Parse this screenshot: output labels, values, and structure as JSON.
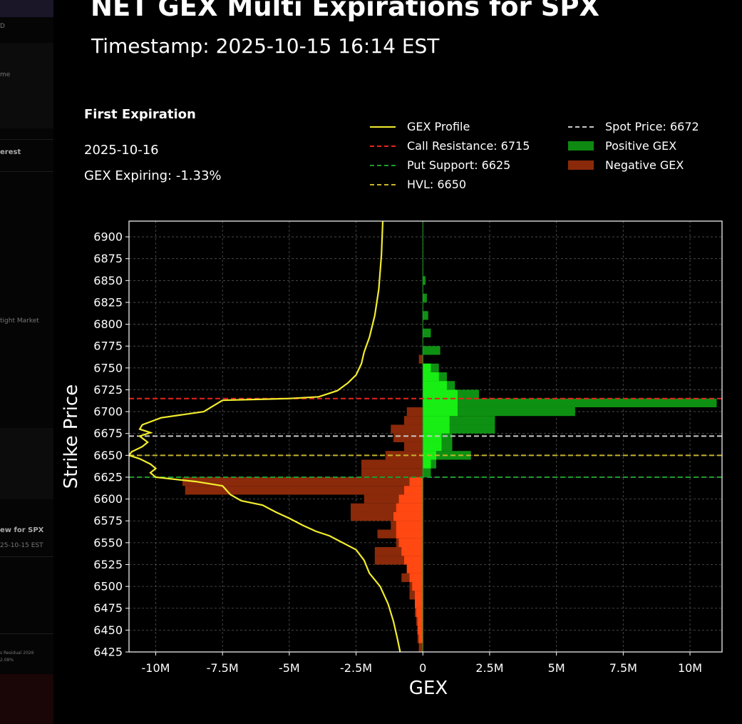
{
  "title": "NET GEX Multi Expirations for SPX",
  "subtitle": "Timestamp: 2025-10-15 16:14 EST",
  "info": {
    "heading": "First Expiration",
    "date": "2025-10-16",
    "expiring": "GEX Expiring: -1.33%"
  },
  "legend": [
    {
      "label": "GEX Profile",
      "color": "#f2ec2e",
      "style": "line"
    },
    {
      "label": "Call Resistance: 6715",
      "color": "#e8241e",
      "style": "dash"
    },
    {
      "label": "Put Support: 6625",
      "color": "#1f9a2c",
      "style": "dash"
    },
    {
      "label": "HVL: 6650",
      "color": "#c7b42c",
      "style": "dash"
    },
    {
      "label": "Spot Price: 6672",
      "color": "#c8c8c8",
      "style": "dash"
    },
    {
      "label": "Positive GEX",
      "color": "#0e8a12",
      "style": "patch"
    },
    {
      "label": "Negative GEX",
      "color": "#8a2a0a",
      "style": "patch"
    }
  ],
  "sidebar": {
    "frags": [
      "D",
      "me",
      "erest",
      "tight Market",
      "ew for SPX",
      "25-10-15 EST",
      "s Residual 2026",
      "2.08%"
    ]
  },
  "colors": {
    "pos_outer": "#0e9112",
    "pos_inner": "#18ee14",
    "neg_outer": "#8a2a0a",
    "neg_inner": "#ff4812",
    "profile": "#f2ec2e",
    "call": "#e8241e",
    "put": "#1f9a2c",
    "hvl": "#c7b42c",
    "spot": "#c8c8c8",
    "grid": "#555555"
  },
  "chart_data": {
    "type": "bar",
    "orientation": "horizontal",
    "xlabel": "GEX",
    "ylabel": "Strike Price",
    "xlim": [
      -11.0,
      11.2
    ],
    "ylim": [
      6425,
      6918
    ],
    "xticks": [
      -10,
      -7.5,
      -5,
      -2.5,
      0,
      2.5,
      5,
      7.5,
      10
    ],
    "xtick_labels": [
      "-10M",
      "-7.5M",
      "-5M",
      "-2.5M",
      "0",
      "2.5M",
      "5M",
      "7.5M",
      "10M"
    ],
    "yticks": [
      6425,
      6450,
      6475,
      6500,
      6525,
      6550,
      6575,
      6600,
      6625,
      6650,
      6675,
      6700,
      6725,
      6750,
      6775,
      6800,
      6825,
      6850,
      6875,
      6900
    ],
    "bar_height": 10,
    "units": "M",
    "levels": {
      "call_resistance": 6715,
      "put_support": 6625,
      "hvl": 6650,
      "spot": 6672
    },
    "aggregate_bars": [
      {
        "strike": 6850,
        "value": 0.1
      },
      {
        "strike": 6830,
        "value": 0.15
      },
      {
        "strike": 6810,
        "value": 0.2
      },
      {
        "strike": 6790,
        "value": 0.3
      },
      {
        "strike": 6770,
        "value": 0.65
      },
      {
        "strike": 6760,
        "value": -0.15
      },
      {
        "strike": 6750,
        "value": 0.6
      },
      {
        "strike": 6740,
        "value": 0.9
      },
      {
        "strike": 6730,
        "value": 1.2
      },
      {
        "strike": 6720,
        "value": 2.1
      },
      {
        "strike": 6710,
        "value": 11.0
      },
      {
        "strike": 6700,
        "value": 5.7
      },
      {
        "strike": 6690,
        "value": 2.7
      },
      {
        "strike": 6680,
        "value": 2.7
      },
      {
        "strike": 6670,
        "value": 1.1
      },
      {
        "strike": 6660,
        "value": 1.1
      },
      {
        "strike": 6650,
        "value": 1.8
      },
      {
        "strike": 6640,
        "value": 0.5
      },
      {
        "strike": 6630,
        "value": 0.3
      },
      {
        "strike": 6700,
        "value": -0.6
      },
      {
        "strike": 6690,
        "value": -0.7
      },
      {
        "strike": 6680,
        "value": -1.2
      },
      {
        "strike": 6670,
        "value": -1.1
      },
      {
        "strike": 6660,
        "value": -0.7
      },
      {
        "strike": 6650,
        "value": -1.4
      },
      {
        "strike": 6640,
        "value": -2.3
      },
      {
        "strike": 6630,
        "value": -2.3
      },
      {
        "strike": 6620,
        "value": -9.0
      },
      {
        "strike": 6610,
        "value": -8.9
      },
      {
        "strike": 6600,
        "value": -2.2
      },
      {
        "strike": 6590,
        "value": -2.7
      },
      {
        "strike": 6580,
        "value": -2.7
      },
      {
        "strike": 6570,
        "value": -1.2
      },
      {
        "strike": 6560,
        "value": -1.7
      },
      {
        "strike": 6550,
        "value": -1.0
      },
      {
        "strike": 6540,
        "value": -1.8
      },
      {
        "strike": 6530,
        "value": -1.8
      },
      {
        "strike": 6520,
        "value": -0.6
      },
      {
        "strike": 6510,
        "value": -0.8
      },
      {
        "strike": 6500,
        "value": -0.5
      },
      {
        "strike": 6490,
        "value": -0.5
      },
      {
        "strike": 6480,
        "value": -0.3
      },
      {
        "strike": 6470,
        "value": -0.3
      },
      {
        "strike": 6460,
        "value": -0.25
      },
      {
        "strike": 6450,
        "value": -0.2
      },
      {
        "strike": 6440,
        "value": -0.2
      },
      {
        "strike": 6430,
        "value": -0.15
      }
    ],
    "first_expiration_bars": [
      {
        "strike": 6750,
        "value": 0.3
      },
      {
        "strike": 6740,
        "value": 0.6
      },
      {
        "strike": 6730,
        "value": 0.9
      },
      {
        "strike": 6720,
        "value": 1.3
      },
      {
        "strike": 6710,
        "value": 1.3
      },
      {
        "strike": 6700,
        "value": 1.3
      },
      {
        "strike": 6690,
        "value": 1.0
      },
      {
        "strike": 6680,
        "value": 1.0
      },
      {
        "strike": 6670,
        "value": 0.7
      },
      {
        "strike": 6660,
        "value": 0.7
      },
      {
        "strike": 6650,
        "value": 0.5
      },
      {
        "strike": 6640,
        "value": 0.3
      },
      {
        "strike": 6620,
        "value": -0.5
      },
      {
        "strike": 6610,
        "value": -0.7
      },
      {
        "strike": 6600,
        "value": -0.9
      },
      {
        "strike": 6590,
        "value": -1.0
      },
      {
        "strike": 6580,
        "value": -1.1
      },
      {
        "strike": 6570,
        "value": -1.0
      },
      {
        "strike": 6560,
        "value": -1.0
      },
      {
        "strike": 6550,
        "value": -0.9
      },
      {
        "strike": 6540,
        "value": -0.8
      },
      {
        "strike": 6530,
        "value": -0.7
      },
      {
        "strike": 6520,
        "value": -0.6
      },
      {
        "strike": 6510,
        "value": -0.5
      },
      {
        "strike": 6500,
        "value": -0.4
      },
      {
        "strike": 6490,
        "value": -0.3
      },
      {
        "strike": 6480,
        "value": -0.3
      },
      {
        "strike": 6470,
        "value": -0.25
      },
      {
        "strike": 6460,
        "value": -0.2
      },
      {
        "strike": 6450,
        "value": -0.2
      },
      {
        "strike": 6440,
        "value": -0.15
      }
    ],
    "gex_profile": [
      [
        -1.5,
        6918
      ],
      [
        -1.55,
        6880
      ],
      [
        -1.65,
        6840
      ],
      [
        -1.8,
        6810
      ],
      [
        -2.0,
        6785
      ],
      [
        -2.2,
        6768
      ],
      [
        -2.3,
        6755
      ],
      [
        -2.5,
        6742
      ],
      [
        -2.8,
        6733
      ],
      [
        -3.2,
        6724
      ],
      [
        -3.9,
        6717
      ],
      [
        -5.0,
        6715
      ],
      [
        -7.5,
        6713
      ],
      [
        -8.2,
        6700
      ],
      [
        -9.8,
        6693
      ],
      [
        -10.5,
        6685
      ],
      [
        -10.6,
        6680
      ],
      [
        -10.2,
        6676
      ],
      [
        -10.6,
        6672
      ],
      [
        -10.3,
        6665
      ],
      [
        -10.5,
        6660
      ],
      [
        -10.9,
        6654
      ],
      [
        -11.0,
        6650
      ],
      [
        -10.6,
        6646
      ],
      [
        -10.2,
        6640
      ],
      [
        -10.0,
        6635
      ],
      [
        -10.2,
        6630
      ],
      [
        -10.0,
        6625
      ],
      [
        -8.5,
        6620
      ],
      [
        -7.5,
        6615
      ],
      [
        -7.2,
        6605
      ],
      [
        -6.8,
        6598
      ],
      [
        -6.0,
        6593
      ],
      [
        -5.5,
        6585
      ],
      [
        -5.0,
        6578
      ],
      [
        -4.5,
        6570
      ],
      [
        -4.0,
        6563
      ],
      [
        -3.5,
        6558
      ],
      [
        -3.0,
        6550
      ],
      [
        -2.5,
        6542
      ],
      [
        -2.2,
        6530
      ],
      [
        -2.0,
        6515
      ],
      [
        -1.6,
        6500
      ],
      [
        -1.3,
        6480
      ],
      [
        -1.1,
        6460
      ],
      [
        -0.95,
        6440
      ],
      [
        -0.85,
        6425
      ]
    ]
  }
}
